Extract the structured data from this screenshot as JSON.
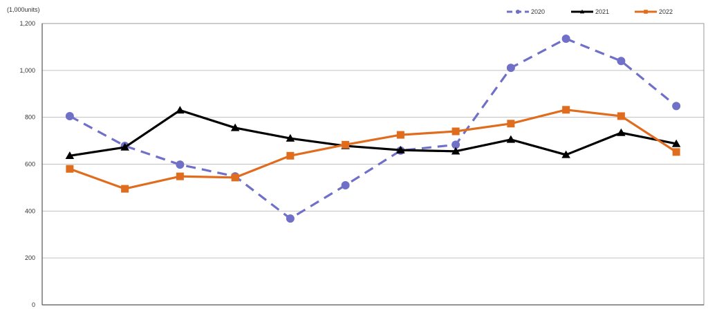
{
  "chart_data": {
    "type": "line",
    "title": "",
    "unit_label": "(1,000units)",
    "xlabel": "",
    "ylabel": "(1,000units)",
    "ylim": [
      0,
      1200
    ],
    "y_ticks": [
      "0",
      "200",
      "400",
      "600",
      "800",
      "1,000",
      "1,200"
    ],
    "y_tick_values": [
      0,
      200,
      400,
      600,
      800,
      1000,
      1200
    ],
    "grid": true,
    "legend_position": "top-right",
    "x": [
      1,
      2,
      3,
      4,
      5,
      6,
      7,
      8,
      9,
      10,
      11,
      12
    ],
    "series": [
      {
        "name": "2020",
        "color": "#7070c8",
        "style": "dashed",
        "marker": "circle",
        "values": [
          805,
          678,
          598,
          548,
          368,
          510,
          658,
          683,
          1011,
          1135,
          1040,
          848
        ]
      },
      {
        "name": "2021",
        "color": "#000000",
        "style": "solid",
        "marker": "triangle",
        "values": [
          636,
          672,
          830,
          755,
          710,
          678,
          660,
          655,
          705,
          640,
          734,
          687
        ]
      },
      {
        "name": "2022",
        "color": "#e06c1e",
        "style": "solid",
        "marker": "square",
        "values": [
          580,
          495,
          548,
          543,
          636,
          683,
          725,
          740,
          773,
          832,
          805,
          652
        ]
      }
    ]
  }
}
